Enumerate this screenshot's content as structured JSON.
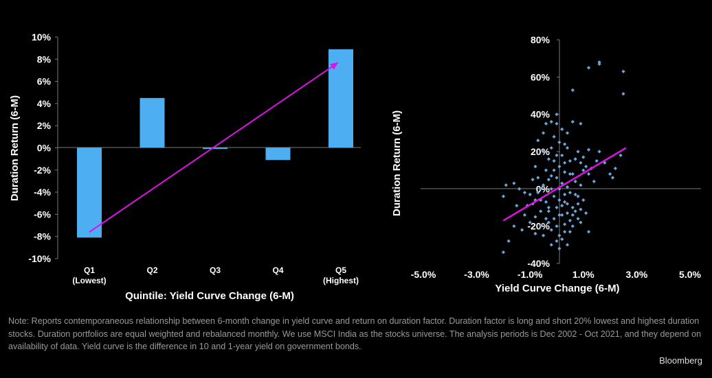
{
  "colors": {
    "background": "#000000",
    "bar": "#4DAEF2",
    "scatter_point": "#6BA7DA",
    "trendline": "#E010E8",
    "axis": "#7a7a7a",
    "note_text": "#9a9a9a"
  },
  "chart_data": [
    {
      "type": "bar",
      "categories": [
        "Q1\n(Lowest)",
        "Q2",
        "Q3",
        "Q4",
        "Q5\n(Highest)"
      ],
      "values": [
        -8.1,
        4.5,
        -0.1,
        -1.1,
        8.9
      ],
      "xlabel": "Quintile: Yield Curve Change (6-M)",
      "ylabel": "Duration Return (6-M)",
      "ylim": [
        -10,
        10
      ],
      "yticks": [
        "10%",
        "8%",
        "6%",
        "4%",
        "2%",
        "0%",
        "-2%",
        "-4%",
        "-6%",
        "-8%",
        "-10%"
      ],
      "trendline": {
        "from": [
          0,
          -7.6
        ],
        "to": [
          4,
          7.7
        ]
      },
      "grid": false
    },
    {
      "type": "scatter",
      "xlabel": "Yield Curve Change (6-M)",
      "ylabel": "Duration Return (6-M)",
      "xlim": [
        -5,
        5
      ],
      "ylim": [
        -40,
        80
      ],
      "xticks": [
        "-5.0%",
        "-3.0%",
        "-1.0%",
        "1.0%",
        "3.0%",
        "5.0%"
      ],
      "yticks": [
        "80%",
        "60%",
        "40%",
        "20%",
        "0%",
        "-20%",
        "-40%"
      ],
      "trendline": {
        "from": [
          -2.0,
          -17
        ],
        "to": [
          2.6,
          22
        ]
      },
      "grid": false,
      "points": [
        [
          -2.0,
          -34
        ],
        [
          -1.8,
          -28
        ],
        [
          -1.6,
          -20
        ],
        [
          -1.3,
          -22
        ],
        [
          -1.2,
          -14
        ],
        [
          -1.1,
          -9
        ],
        [
          -2.0,
          -4
        ],
        [
          -1.6,
          3
        ],
        [
          -1.9,
          2
        ],
        [
          -1.4,
          0
        ],
        [
          -1.0,
          -3
        ],
        [
          -0.9,
          -8
        ],
        [
          -0.8,
          -15
        ],
        [
          -0.8,
          -24
        ],
        [
          -0.7,
          -2
        ],
        [
          -0.6,
          -20
        ],
        [
          -0.5,
          -25
        ],
        [
          -0.5,
          2
        ],
        [
          -0.4,
          -7
        ],
        [
          -0.3,
          -12
        ],
        [
          -0.3,
          -18
        ],
        [
          -0.2,
          -22
        ],
        [
          -0.2,
          0
        ],
        [
          -0.1,
          -4
        ],
        [
          0.0,
          -10
        ],
        [
          0.1,
          -14
        ],
        [
          0.1,
          -25
        ],
        [
          0.2,
          -27
        ],
        [
          0.3,
          -19
        ],
        [
          0.3,
          -7
        ],
        [
          0.4,
          -13
        ],
        [
          0.5,
          -23
        ],
        [
          0.6,
          -10
        ],
        [
          0.7,
          -3
        ],
        [
          0.8,
          -16
        ],
        [
          0.9,
          -11
        ],
        [
          1.0,
          -6
        ],
        [
          1.2,
          -23
        ],
        [
          -0.4,
          10
        ],
        [
          -0.3,
          16
        ],
        [
          -0.2,
          22
        ],
        [
          -0.1,
          28
        ],
        [
          0.0,
          35
        ],
        [
          0.0,
          40
        ],
        [
          -0.2,
          36
        ],
        [
          -0.4,
          35
        ],
        [
          -0.5,
          30
        ],
        [
          -0.3,
          5
        ],
        [
          0.1,
          12
        ],
        [
          0.2,
          18
        ],
        [
          0.3,
          24
        ],
        [
          0.4,
          30
        ],
        [
          0.5,
          15
        ],
        [
          0.6,
          8
        ],
        [
          0.7,
          4
        ],
        [
          0.8,
          20
        ],
        [
          0.9,
          2
        ],
        [
          1.0,
          10
        ],
        [
          0.2,
          3
        ],
        [
          0.5,
          -2
        ],
        [
          -0.6,
          -6
        ],
        [
          -0.7,
          6
        ],
        [
          -0.8,
          12
        ],
        [
          -0.9,
          5
        ],
        [
          -1.2,
          -2
        ],
        [
          0.3,
          -3
        ],
        [
          0.6,
          -14
        ],
        [
          0.8,
          -8
        ],
        [
          -0.5,
          20
        ],
        [
          0.1,
          25
        ],
        [
          0.2,
          32
        ],
        [
          0.4,
          22
        ],
        [
          0.6,
          36
        ],
        [
          0.9,
          14
        ],
        [
          1.2,
          8
        ],
        [
          1.4,
          4
        ],
        [
          -0.1,
          -16
        ],
        [
          0.0,
          6
        ],
        [
          0.1,
          -6
        ],
        [
          0.2,
          -9
        ],
        [
          0.3,
          9
        ],
        [
          0.4,
          1
        ],
        [
          0.5,
          -17
        ],
        [
          0.6,
          -20
        ],
        [
          0.7,
          -12
        ],
        [
          -0.1,
          15
        ],
        [
          -0.2,
          7
        ],
        [
          -0.3,
          -10
        ],
        [
          -0.4,
          -16
        ],
        [
          0.0,
          -20
        ],
        [
          0.1,
          0
        ],
        [
          0.2,
          -14
        ],
        [
          0.3,
          -23
        ],
        [
          0.4,
          -8
        ],
        [
          0.0,
          18
        ],
        [
          -0.1,
          10
        ],
        [
          0.3,
          14
        ],
        [
          0.5,
          8
        ],
        [
          0.7,
          16
        ],
        [
          0.8,
          -4
        ],
        [
          0.9,
          -18
        ],
        [
          1.1,
          -13
        ],
        [
          -0.6,
          -12
        ],
        [
          -0.8,
          -6
        ],
        [
          1.0,
          17
        ],
        [
          1.1,
          12
        ],
        [
          1.3,
          11
        ],
        [
          1.5,
          15
        ],
        [
          1.6,
          20
        ],
        [
          1.8,
          14
        ],
        [
          2.0,
          8
        ],
        [
          2.1,
          6
        ],
        [
          2.2,
          11
        ],
        [
          2.4,
          18
        ],
        [
          1.2,
          65
        ],
        [
          1.6,
          67
        ],
        [
          1.6,
          68
        ],
        [
          2.5,
          63
        ],
        [
          2.5,
          51
        ],
        [
          0.6,
          53
        ],
        [
          0.9,
          35
        ],
        [
          1.2,
          21
        ],
        [
          -0.2,
          -30
        ],
        [
          0.1,
          -32
        ],
        [
          0.0,
          -28
        ],
        [
          -1.0,
          -18
        ],
        [
          -0.6,
          0
        ],
        [
          0.4,
          -30
        ],
        [
          -0.7,
          26
        ],
        [
          -1.5,
          -9
        ]
      ]
    }
  ],
  "note": {
    "text": "Note: Reports contemporaneous relationship between 6-month change in yield curve and return on duration factor. Duration factor is long and short 20% lowest and highest duration stocks. Duration portfolios are equal weighted and rebalanced monthly. We use MSCI India as the stocks universe. The analysis periods is Dec 2002 - Oct 2021, and they depend on availability of data. Yield curve is the difference in 10 and 1-year yield on government bonds."
  },
  "source": {
    "logo_text": "Bloomberg"
  }
}
